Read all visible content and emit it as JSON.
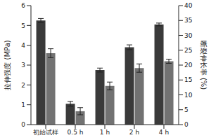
{
  "chart_data": {
    "type": "bar",
    "categories": [
      "初始试样",
      "0.5 h",
      "1 h",
      "2 h",
      "4 h"
    ],
    "y_label": "拉伸强度 (MPa)",
    "y2_label": "断裂伸长率 (%)",
    "ylim": [
      0,
      6
    ],
    "yticks": [
      0,
      1,
      2,
      3,
      4,
      5,
      6
    ],
    "y2lim": [
      0,
      40
    ],
    "y2ticks": [
      0,
      5,
      10,
      15,
      20,
      25,
      30,
      35,
      40
    ],
    "grid": false,
    "series": [
      {
        "name": "拉伸强度",
        "color": "#3a3a3a",
        "values": [
          5.25,
          1.05,
          2.75,
          3.9,
          5.05
        ],
        "errors": [
          0.1,
          0.12,
          0.1,
          0.12,
          0.07
        ]
      },
      {
        "name": "断裂伸长率",
        "color": "#727272",
        "axis": "y2",
        "values": [
          24,
          4.5,
          13,
          19,
          21.3
        ],
        "errors": [
          1.5,
          1.2,
          1.3,
          1.4,
          0.7
        ]
      }
    ]
  }
}
